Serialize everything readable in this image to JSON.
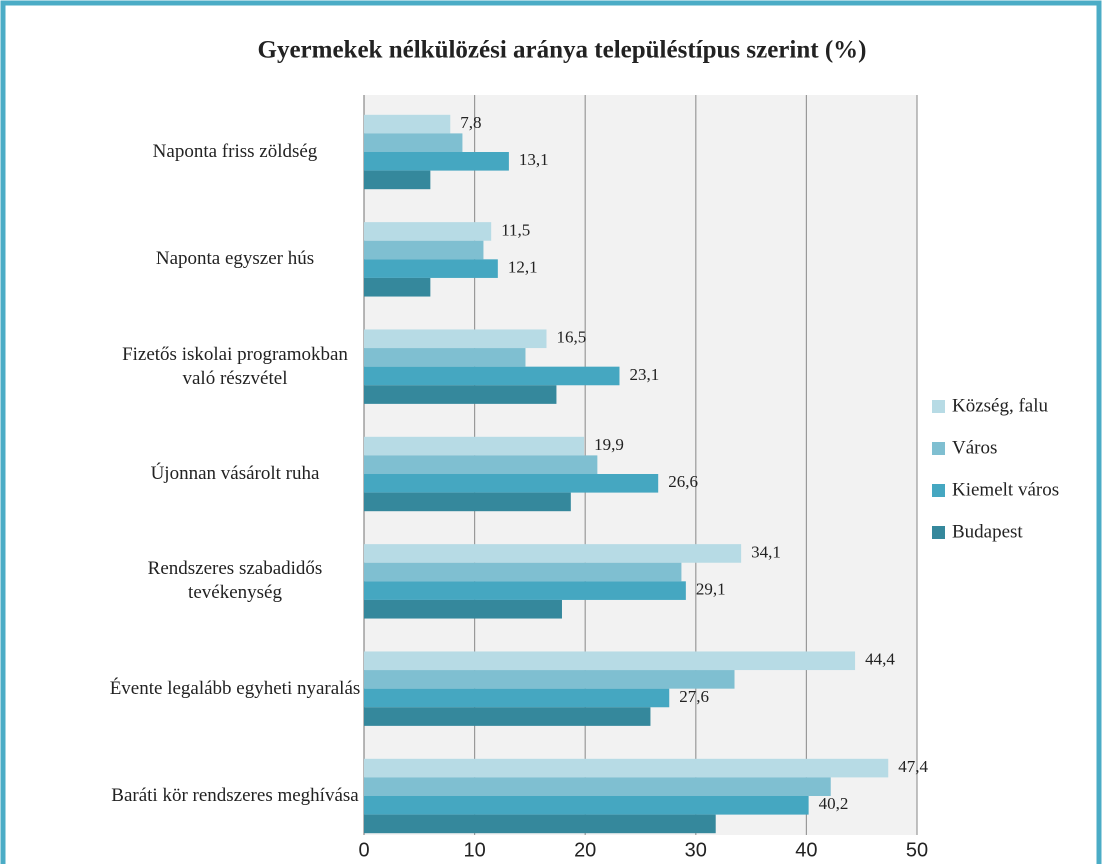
{
  "chart_data": {
    "type": "hbar",
    "title": "Gyermekek nélkülözési aránya településtípus szerint (%)",
    "categories": [
      "Naponta friss zöldség",
      "Naponta egyszer hús",
      "Fizetős iskolai programokban való részvétel",
      "Újonnan vásárolt ruha",
      "Rendszeres szabadidős tevékenység",
      "Évente legalább egyheti nyaralás",
      "Baráti kör rendszeres meghívása"
    ],
    "series": [
      {
        "name": "Község, falu",
        "color": "#b7dbe5",
        "values": [
          7.8,
          11.5,
          16.5,
          19.9,
          34.1,
          44.4,
          47.4
        ],
        "value_labels": [
          "7,8",
          "11,5",
          "16,5",
          "19,9",
          "34,1",
          "44,4",
          "47,4"
        ]
      },
      {
        "name": "Város",
        "color": "#7fbfd1",
        "values": [
          8.9,
          10.8,
          14.6,
          21.1,
          28.7,
          33.5,
          42.2
        ]
      },
      {
        "name": "Kiemelt város",
        "color": "#45a7c1",
        "values": [
          13.1,
          12.1,
          23.1,
          26.6,
          29.1,
          27.6,
          40.2
        ],
        "value_labels": [
          "13,1",
          "12,1",
          "23,1",
          "26,6",
          "29,1",
          "27,6",
          "40,2"
        ]
      },
      {
        "name": "Budapest",
        "color": "#35889c",
        "values": [
          6.0,
          6.0,
          17.4,
          18.7,
          17.9,
          25.9,
          31.8
        ]
      }
    ],
    "xlim": [
      0,
      50
    ],
    "xticks": [
      0,
      10,
      20,
      30,
      40,
      50
    ],
    "grid": true,
    "legend": "right"
  }
}
